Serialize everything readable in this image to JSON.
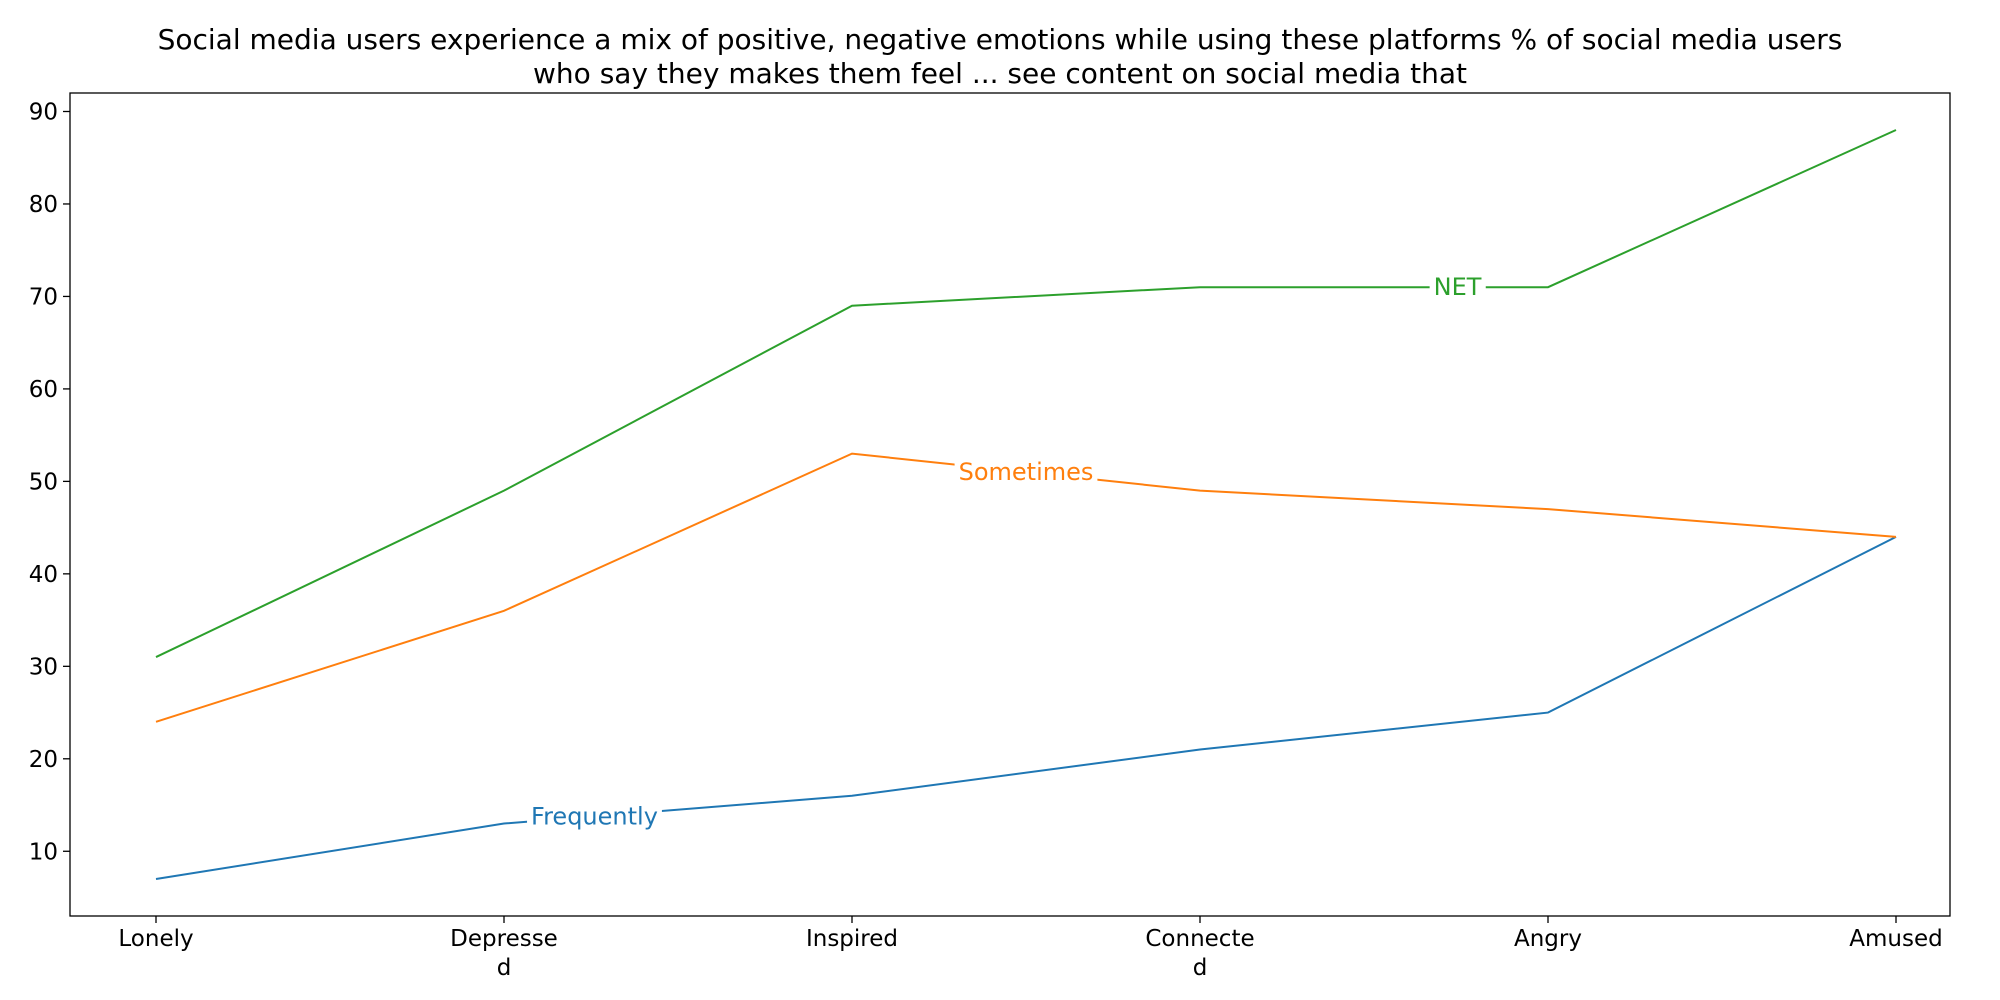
{
  "chart_data": {
    "type": "line",
    "title_lines": [
      "Social media users experience a mix of positive, negative emotions while using these platforms % of social media users",
      "who say they makes them feel ... see content on social media that"
    ],
    "categories": [
      [
        "Lonely"
      ],
      [
        "Depresse",
        "d"
      ],
      [
        "Inspired"
      ],
      [
        "Connecte",
        "d"
      ],
      [
        "Angry"
      ],
      [
        "Amused"
      ]
    ],
    "ylim": [
      3,
      92
    ],
    "yticks": [
      10,
      20,
      30,
      40,
      50,
      60,
      70,
      80,
      90
    ],
    "grid": false,
    "series": [
      {
        "name": "Frequently",
        "color": "#1f77b4",
        "values": [
          7,
          13,
          16,
          21,
          25,
          44
        ],
        "label_at": 1.26
      },
      {
        "name": "Sometimes",
        "color": "#ff7f0e",
        "values": [
          24,
          36,
          53,
          49,
          47,
          44
        ],
        "label_at": 2.5
      },
      {
        "name": "NET",
        "color": "#2ca02c",
        "values": [
          31,
          49,
          69,
          71,
          71,
          88
        ],
        "label_at": 3.74
      }
    ]
  }
}
